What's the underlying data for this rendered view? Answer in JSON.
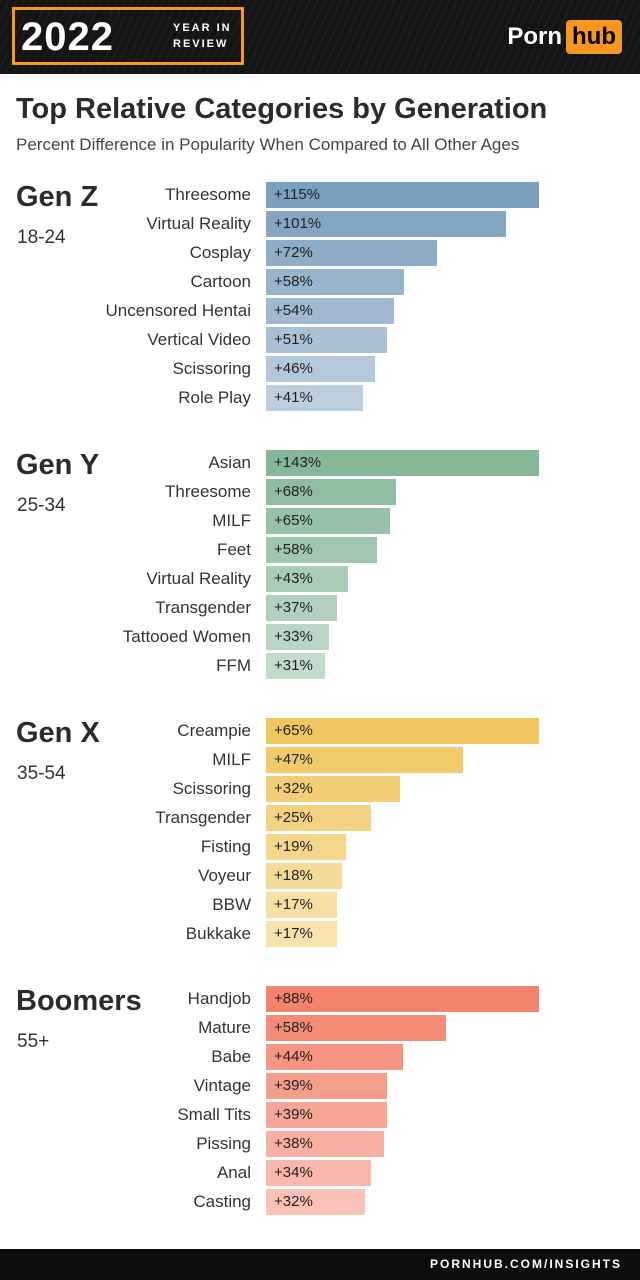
{
  "header": {
    "year": "2022",
    "year_sub_1": "YEAR IN",
    "year_sub_2": "REVIEW",
    "logo_part1": "Porn",
    "logo_part2": "hub",
    "accent_color": "#f7971d"
  },
  "title": "Top Relative Categories by Generation",
  "subtitle": "Percent Difference in Popularity When Compared to All Other Ages",
  "footer": "PORNHUB.COM/INSIGHTS",
  "chart_data": [
    {
      "type": "bar",
      "orientation": "horizontal",
      "title": "Gen Z",
      "subtitle": "18-24",
      "color": "#7b9fbe",
      "categories": [
        "Threesome",
        "Virtual Reality",
        "Cosplay",
        "Cartoon",
        "Uncensored Hentai",
        "Vertical Video",
        "Scissoring",
        "Role Play"
      ],
      "values": [
        115,
        101,
        72,
        58,
        54,
        51,
        46,
        41
      ],
      "labels": [
        "+115%",
        "+101%",
        "+72%",
        "+58%",
        "+54%",
        "+51%",
        "+46%",
        "+41%"
      ]
    },
    {
      "type": "bar",
      "orientation": "horizontal",
      "title": "Gen Y",
      "subtitle": "25-34",
      "color": "#86b898",
      "categories": [
        "Asian",
        "Threesome",
        "MILF",
        "Feet",
        "Virtual Reality",
        "Transgender",
        "Tattooed Women",
        "FFM"
      ],
      "values": [
        143,
        68,
        65,
        58,
        43,
        37,
        33,
        31
      ],
      "labels": [
        "+143%",
        "+68%",
        "+65%",
        "+58%",
        "+43%",
        "+37%",
        "+33%",
        "+31%"
      ]
    },
    {
      "type": "bar",
      "orientation": "horizontal",
      "title": "Gen X",
      "subtitle": "35-54",
      "color": "#f0c75e",
      "categories": [
        "Creampie",
        "MILF",
        "Scissoring",
        "Transgender",
        "Fisting",
        "Voyeur",
        "BBW",
        "Bukkake"
      ],
      "values": [
        65,
        47,
        32,
        25,
        19,
        18,
        17,
        17
      ],
      "labels": [
        "+65%",
        "+47%",
        "+32%",
        "+25%",
        "+19%",
        "+18%",
        "+17%",
        "+17%"
      ]
    },
    {
      "type": "bar",
      "orientation": "horizontal",
      "title": "Boomers",
      "subtitle": "55+",
      "color": "#f4836c",
      "categories": [
        "Handjob",
        "Mature",
        "Babe",
        "Vintage",
        "Small Tits",
        "Pissing",
        "Anal",
        "Casting"
      ],
      "values": [
        88,
        58,
        44,
        39,
        39,
        38,
        34,
        32
      ],
      "labels": [
        "+88%",
        "+58%",
        "+44%",
        "+39%",
        "+39%",
        "+38%",
        "+34%",
        "+32%"
      ]
    }
  ]
}
